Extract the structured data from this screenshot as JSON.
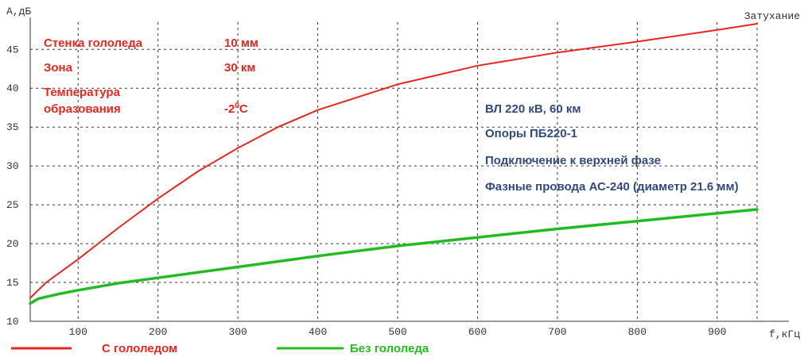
{
  "chart_data": {
    "type": "line",
    "title": "Затухание",
    "ylabel": "А,дБ",
    "xlabel": "f,кГц",
    "xlim": [
      40,
      950
    ],
    "ylim": [
      10,
      48.5
    ],
    "x_ticks": [
      100,
      200,
      300,
      400,
      500,
      600,
      700,
      800,
      900
    ],
    "y_ticks": [
      10,
      15,
      20,
      25,
      30,
      35,
      40,
      45
    ],
    "grid": true,
    "legend_position": "bottom",
    "series": [
      {
        "name": "С гололедом",
        "color": "#e8261e",
        "x": [
          40,
          50,
          60,
          80,
          100,
          150,
          200,
          250,
          300,
          350,
          400,
          500,
          600,
          700,
          800,
          900,
          950
        ],
        "y": [
          13.0,
          14.0,
          15.0,
          16.5,
          18.0,
          22.0,
          25.8,
          29.3,
          32.3,
          35.0,
          37.2,
          40.5,
          42.9,
          44.6,
          46.0,
          47.5,
          48.3
        ]
      },
      {
        "name": "Без гололеда",
        "color": "#22bb22",
        "x": [
          40,
          50,
          75,
          100,
          150,
          200,
          300,
          400,
          500,
          600,
          700,
          800,
          900,
          950
        ],
        "y": [
          12.3,
          12.9,
          13.5,
          14.0,
          14.9,
          15.6,
          17.0,
          18.4,
          19.7,
          20.8,
          21.9,
          22.9,
          23.9,
          24.4
        ]
      }
    ]
  },
  "annotations": {
    "ice_wall_label": "Стенка гололеда",
    "ice_wall_value": "10 мм",
    "zone_label": "Зона",
    "zone_value": "30 км",
    "temp_label_line1": "Температура",
    "temp_label_line2": "образования",
    "temp_value": "-2",
    "temp_sup": "0",
    "temp_unit": "С",
    "line_info": "ВЛ 220 кВ, 60 км",
    "supports": "Опоры ПБ220-1",
    "connection": "Подключение к верхней фазе",
    "wires": "Фазные провода АС-240 (диаметр 21.6 мм)"
  }
}
